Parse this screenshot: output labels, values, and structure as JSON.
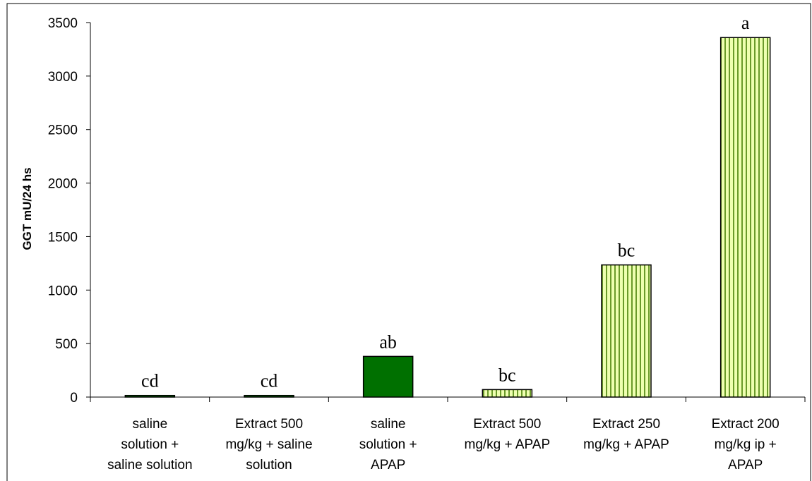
{
  "chart_data": {
    "type": "bar",
    "title": "",
    "xlabel": "",
    "ylabel": "GGT mU/24 hs",
    "ylim": [
      0,
      3500
    ],
    "yticks": [
      0,
      500,
      1000,
      1500,
      2000,
      2500,
      3000,
      3500
    ],
    "grid": false,
    "legend": "none",
    "categories": [
      [
        "saline",
        "solution +",
        "saline solution"
      ],
      [
        "Extract 500",
        "mg/kg + saline",
        "solution"
      ],
      [
        "saline",
        "solution +",
        "APAP"
      ],
      [
        "Extract 500",
        "mg/kg + APAP"
      ],
      [
        "Extract 250",
        "mg/kg + APAP"
      ],
      [
        "Extract 200",
        "mg/kg ip +",
        "APAP"
      ]
    ],
    "values": [
      15,
      15,
      380,
      70,
      1235,
      3360
    ],
    "annotations": [
      "cd",
      "cd",
      "ab",
      "bc",
      "bc",
      "a"
    ],
    "bar_styles": [
      "dark-green-solid",
      "dark-green-solid",
      "dark-green-solid",
      "light-green-striped",
      "light-green-striped",
      "light-green-striped"
    ],
    "colors": {
      "solid_fill": "#007000",
      "stripe_light": "#eeffb0",
      "stripe_dark": "#6a9a2a",
      "border": "#000000"
    }
  }
}
